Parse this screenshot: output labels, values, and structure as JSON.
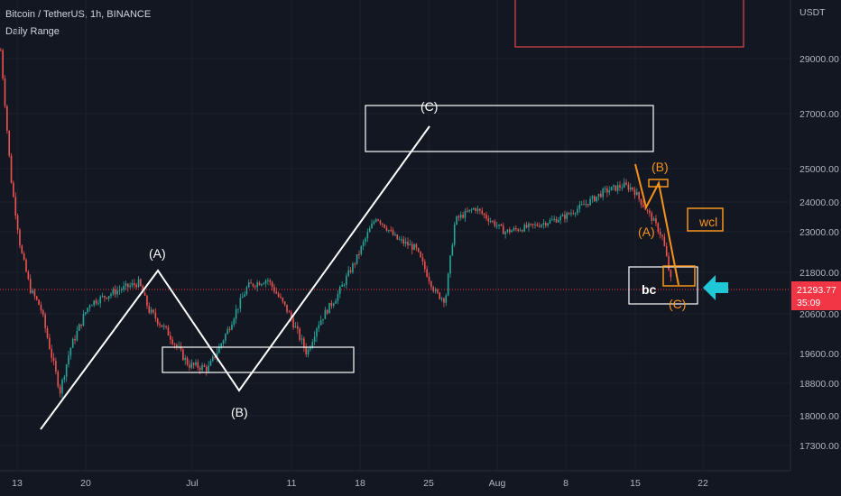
{
  "header": {
    "symbol_line": "Bitcoin / TetherUS, 1h, BINANCE",
    "indicator": "Daily Range"
  },
  "price_axis": {
    "currency": "USDT",
    "ticks": [
      "29000.00",
      "27000.00",
      "25000.00",
      "24000.00",
      "23000.00",
      "21800.00",
      "20600.00",
      "19600.00",
      "18800.00",
      "18000.00",
      "17300.00"
    ],
    "last_price": "21293.77",
    "countdown": "35:09"
  },
  "time_axis": {
    "ticks": [
      "13",
      "20",
      "Jul",
      "11",
      "18",
      "25",
      "Aug",
      "8",
      "15",
      "22"
    ]
  },
  "labels": {
    "wave_A_white": "(A)",
    "wave_B_white": "(B)",
    "wave_C_white": "(C)",
    "wave_A_orange": "(A)",
    "wave_B_orange": "(B)",
    "wave_C_orange": "(C)",
    "bc": "bc",
    "wcl": "wcl"
  },
  "colors": {
    "background": "#131722",
    "up": "#26a69a",
    "down": "#ef5350",
    "annotation_white": "#ffffff",
    "annotation_orange": "#f7931a",
    "arrow": "#1ec8d6",
    "zone_red": "#e04848",
    "last_price_bg": "#f23645"
  },
  "chart_data": {
    "type": "candlestick",
    "title": "Bitcoin / TetherUS, 1h, BINANCE",
    "ylim": [
      17000,
      30500
    ],
    "x_ticks": [
      "13",
      "20",
      "Jul",
      "11",
      "18",
      "25",
      "Aug",
      "8",
      "15",
      "22"
    ],
    "y_ticks": [
      29000,
      27000,
      25000,
      24000,
      23000,
      21800,
      20600,
      19600,
      18800,
      18000,
      17300
    ],
    "last_price": 21293.77,
    "approx_path": [
      {
        "t": "Jun 12",
        "p": 29300
      },
      {
        "t": "Jun 13",
        "p": 24800
      },
      {
        "t": "Jun 14",
        "p": 22500
      },
      {
        "t": "Jun 15",
        "p": 21300
      },
      {
        "t": "Jun 16",
        "p": 20800
      },
      {
        "t": "Jun 18",
        "p": 18600
      },
      {
        "t": "Jun 19",
        "p": 19700
      },
      {
        "t": "Jun 21",
        "p": 20900
      },
      {
        "t": "Jun 24",
        "p": 21300
      },
      {
        "t": "Jun 26",
        "p": 21500
      },
      {
        "t": "Jun 27",
        "p": 20700
      },
      {
        "t": "Jun 29",
        "p": 20100
      },
      {
        "t": "Jul 1",
        "p": 19300
      },
      {
        "t": "Jul 3",
        "p": 19200
      },
      {
        "t": "Jul 5",
        "p": 20200
      },
      {
        "t": "Jul 7",
        "p": 21400
      },
      {
        "t": "Jul 9",
        "p": 21600
      },
      {
        "t": "Jul 11",
        "p": 20700
      },
      {
        "t": "Jul 13",
        "p": 19600
      },
      {
        "t": "Jul 14",
        "p": 20300
      },
      {
        "t": "Jul 16",
        "p": 21100
      },
      {
        "t": "Jul 18",
        "p": 22200
      },
      {
        "t": "Jul 20",
        "p": 23500
      },
      {
        "t": "Jul 22",
        "p": 22800
      },
      {
        "t": "Jul 24",
        "p": 22500
      },
      {
        "t": "Jul 26",
        "p": 21200
      },
      {
        "t": "Jul 27",
        "p": 21000
      },
      {
        "t": "Jul 28",
        "p": 23400
      },
      {
        "t": "Jul 30",
        "p": 23800
      },
      {
        "t": "Aug 2",
        "p": 23000
      },
      {
        "t": "Aug 5",
        "p": 23200
      },
      {
        "t": "Aug 8",
        "p": 23500
      },
      {
        "t": "Aug 10",
        "p": 23900
      },
      {
        "t": "Aug 12",
        "p": 24300
      },
      {
        "t": "Aug 14",
        "p": 24500
      },
      {
        "t": "Aug 15",
        "p": 24400
      },
      {
        "t": "Aug 16",
        "p": 23900
      },
      {
        "t": "Aug 17",
        "p": 23400
      },
      {
        "t": "Aug 18",
        "p": 22800
      },
      {
        "t": "Aug 19",
        "p": 21300
      }
    ]
  }
}
